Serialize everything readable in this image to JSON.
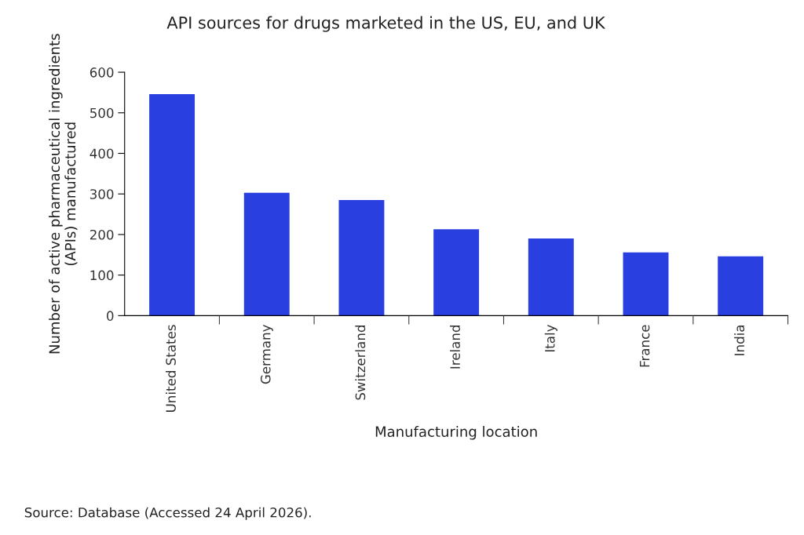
{
  "chart_data": {
    "type": "bar",
    "title": "API sources for drugs marketed in the US, EU, and UK",
    "xlabel": "Manufacturing location",
    "ylabel": "Number of active pharmaceutical ingredients\n(APIs) manufactured",
    "categories": [
      "United States",
      "Germany",
      "Switzerland",
      "Ireland",
      "Italy",
      "France",
      "India"
    ],
    "values": [
      546,
      303,
      285,
      213,
      190,
      156,
      146
    ],
    "color": "#2a3fe0",
    "ylim": [
      0,
      600
    ],
    "yticks": [
      0,
      100,
      200,
      300,
      400,
      500,
      600
    ],
    "grid": false,
    "legend": false,
    "annotations": [
      "Source: Database (Accessed 24 April 2026)."
    ]
  }
}
